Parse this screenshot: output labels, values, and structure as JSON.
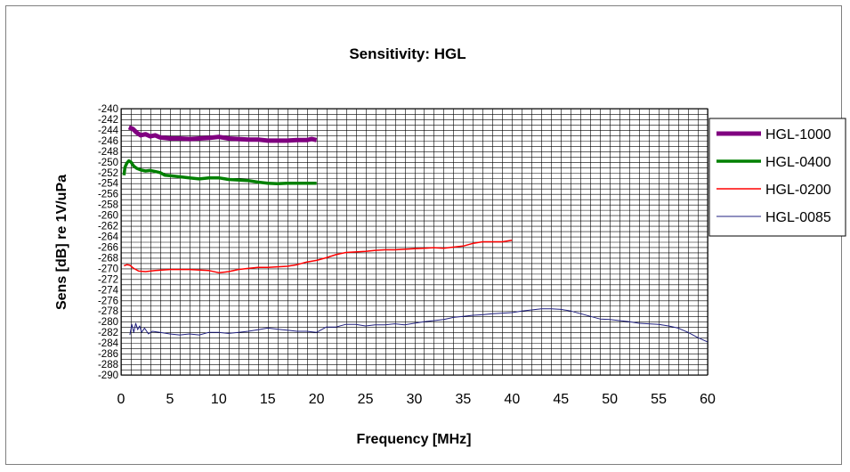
{
  "chart_data": {
    "type": "line",
    "title": "Sensitivity: HGL",
    "xlabel": "Frequency [MHz]",
    "ylabel": "Sens [dB] re 1V/uPa",
    "xlim": [
      0,
      60
    ],
    "ylim": [
      -290,
      -240
    ],
    "x_ticks": [
      "0",
      "5",
      "10",
      "15",
      "20",
      "25",
      "30",
      "35",
      "40",
      "45",
      "50",
      "55",
      "60"
    ],
    "y_ticks": [
      "-240",
      "-242",
      "-244",
      "-246",
      "-248",
      "-250",
      "-252",
      "-254",
      "-256",
      "-258",
      "-260",
      "-262",
      "-264",
      "-266",
      "-268",
      "-270",
      "-272",
      "-274",
      "-276",
      "-278",
      "-280",
      "-282",
      "-284",
      "-286",
      "-288",
      "-290"
    ],
    "grid": true,
    "legend_position": "right",
    "series": [
      {
        "name": "HGL-1000",
        "color": "#800080",
        "x": [
          0.8,
          1.2,
          1.6,
          2.0,
          2.5,
          3.0,
          3.5,
          4.0,
          5.0,
          6.0,
          7.0,
          8.0,
          9.0,
          10.0,
          11.0,
          12.0,
          13.0,
          14.0,
          15.0,
          16.0,
          17.0,
          18.0,
          19.0,
          19.5,
          20.0
        ],
        "y": [
          -243.5,
          -243.8,
          -244.5,
          -245.0,
          -244.8,
          -245.2,
          -245.0,
          -245.4,
          -245.6,
          -245.6,
          -245.7,
          -245.6,
          -245.5,
          -245.3,
          -245.6,
          -245.7,
          -245.8,
          -245.8,
          -246.0,
          -246.0,
          -246.0,
          -245.9,
          -245.9,
          -245.7,
          -245.9
        ]
      },
      {
        "name": "HGL-0400",
        "color": "#008000",
        "x": [
          0.3,
          0.4,
          0.6,
          0.8,
          1.0,
          1.3,
          1.6,
          2.0,
          2.5,
          3.0,
          3.5,
          4.0,
          4.5,
          5.0,
          6.0,
          7.0,
          8.0,
          9.0,
          10.0,
          11.0,
          12.0,
          13.0,
          14.0,
          15.0,
          16.0,
          17.0,
          18.0,
          19.0,
          20.0
        ],
        "y": [
          -252.5,
          -251.0,
          -250.2,
          -249.8,
          -250.0,
          -250.8,
          -251.2,
          -251.5,
          -251.7,
          -251.6,
          -251.8,
          -252.0,
          -252.5,
          -252.6,
          -252.8,
          -253.0,
          -253.2,
          -253.0,
          -253.0,
          -253.3,
          -253.4,
          -253.5,
          -253.8,
          -254.0,
          -254.1,
          -254.0,
          -254.0,
          -254.0,
          -254.0
        ]
      },
      {
        "name": "HGL-0200",
        "color": "#ff0000",
        "x": [
          0.3,
          0.6,
          0.9,
          1.3,
          1.8,
          2.5,
          3.5,
          5.0,
          7.0,
          9.0,
          10.0,
          11.0,
          12.0,
          13.0,
          14.0,
          15.0,
          16.0,
          17.0,
          18.0,
          19.0,
          20.0,
          21.0,
          22.0,
          23.0,
          24.0,
          25.0,
          26.0,
          27.0,
          28.0,
          29.0,
          30.0,
          31.0,
          32.0,
          33.0,
          34.0,
          35.0,
          36.0,
          37.0,
          38.0,
          39.0,
          40.0
        ],
        "y": [
          -269.5,
          -269.3,
          -269.4,
          -270.0,
          -270.5,
          -270.6,
          -270.4,
          -270.2,
          -270.2,
          -270.4,
          -270.8,
          -270.6,
          -270.2,
          -270.0,
          -269.8,
          -269.8,
          -269.7,
          -269.6,
          -269.3,
          -268.8,
          -268.5,
          -268.0,
          -267.4,
          -267.0,
          -266.9,
          -266.8,
          -266.6,
          -266.5,
          -266.5,
          -266.4,
          -266.3,
          -266.2,
          -266.1,
          -266.2,
          -266.0,
          -265.8,
          -265.3,
          -265.0,
          -265.0,
          -265.0,
          -264.7
        ]
      },
      {
        "name": "HGL-0085",
        "color": "#202080",
        "x": [
          0.9,
          1.1,
          1.3,
          1.5,
          1.7,
          1.9,
          2.1,
          2.4,
          2.8,
          3.2,
          4.0,
          5.0,
          6.0,
          7.0,
          8.0,
          9.0,
          10.0,
          11.0,
          12.0,
          13.0,
          14.0,
          15.0,
          16.0,
          17.0,
          18.0,
          19.0,
          20.0,
          21.0,
          22.0,
          23.0,
          24.0,
          25.0,
          26.0,
          27.0,
          28.0,
          29.0,
          30.0,
          31.0,
          32.0,
          33.0,
          34.0,
          35.0,
          36.0,
          37.0,
          38.0,
          39.0,
          40.0,
          41.0,
          42.0,
          43.0,
          44.0,
          45.0,
          46.0,
          47.0,
          48.0,
          49.0,
          50.0,
          51.0,
          52.0,
          53.0,
          54.0,
          55.0,
          56.0,
          57.0,
          58.0,
          59.0,
          60.0
        ],
        "y": [
          -282.5,
          -280.5,
          -282.0,
          -280.3,
          -281.5,
          -280.8,
          -282.0,
          -281.2,
          -282.3,
          -281.8,
          -282.0,
          -282.3,
          -282.5,
          -282.3,
          -282.5,
          -282.0,
          -282.0,
          -282.2,
          -282.0,
          -281.8,
          -281.5,
          -281.2,
          -281.4,
          -281.6,
          -281.8,
          -281.8,
          -282.0,
          -281.0,
          -281.0,
          -280.5,
          -280.5,
          -280.8,
          -280.6,
          -280.6,
          -280.4,
          -280.6,
          -280.3,
          -280.0,
          -279.8,
          -279.6,
          -279.2,
          -279.0,
          -278.8,
          -278.7,
          -278.5,
          -278.4,
          -278.3,
          -278.0,
          -277.8,
          -277.6,
          -277.6,
          -277.7,
          -278.0,
          -278.5,
          -279.0,
          -279.5,
          -279.6,
          -279.8,
          -280.0,
          -280.3,
          -280.4,
          -280.5,
          -280.8,
          -281.2,
          -282.0,
          -283.0,
          -283.8
        ]
      }
    ]
  }
}
